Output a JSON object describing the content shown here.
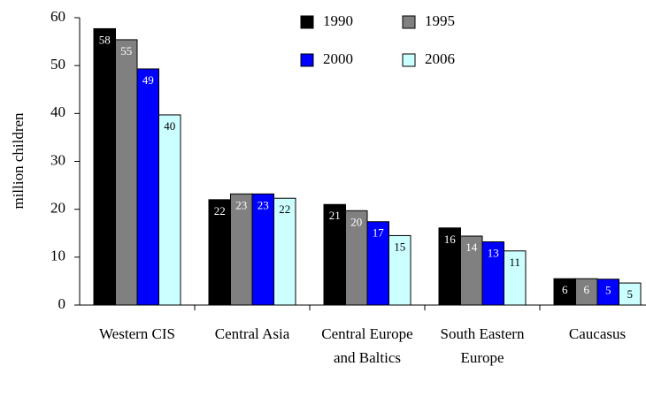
{
  "chart_data": {
    "type": "bar",
    "y_label": "million children",
    "categories": [
      "Western CIS",
      "Central Asia",
      "Central Europe and Baltics",
      "South Eastern Europe",
      "Caucasus"
    ],
    "series": [
      {
        "name": "1990",
        "color": "#000000",
        "label_color": "#ffffff",
        "values": [
          57.7,
          22.0,
          21.0,
          16.1,
          5.5
        ],
        "value_labels": [
          "58",
          "22",
          "21",
          "16",
          "6"
        ]
      },
      {
        "name": "1995",
        "color": "#808080",
        "label_color": "#ffffff",
        "values": [
          55.4,
          23.2,
          19.7,
          14.4,
          5.5
        ],
        "value_labels": [
          "55",
          "23",
          "20",
          "14",
          "6"
        ]
      },
      {
        "name": "2000",
        "color": "#0000ff",
        "label_color": "#ffffff",
        "values": [
          49.3,
          23.2,
          17.4,
          13.2,
          5.4
        ],
        "value_labels": [
          "49",
          "23",
          "17",
          "13",
          "5"
        ]
      },
      {
        "name": "2006",
        "color": "#ccffff",
        "label_color": "#000000",
        "values": [
          39.7,
          22.3,
          14.5,
          11.3,
          4.6
        ],
        "value_labels": [
          "40",
          "22",
          "15",
          "11",
          "5"
        ]
      }
    ],
    "ylim": [
      0,
      60
    ],
    "yticks": [
      0,
      10,
      20,
      30,
      40,
      50,
      60
    ],
    "grid": false,
    "legend_position": "top-right"
  }
}
